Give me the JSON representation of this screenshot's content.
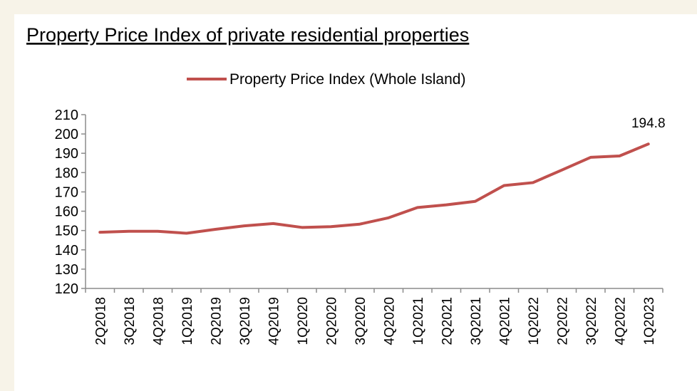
{
  "chart_data": {
    "type": "line",
    "title": "Property Price Index of private residential properties",
    "categories": [
      "2Q2018",
      "3Q2018",
      "4Q2018",
      "1Q2019",
      "2Q2019",
      "3Q2019",
      "4Q2019",
      "1Q2020",
      "2Q2020",
      "3Q2020",
      "4Q2020",
      "1Q2021",
      "2Q2021",
      "3Q2021",
      "4Q2021",
      "1Q2022",
      "2Q2022",
      "3Q2022",
      "4Q2022",
      "1Q2023"
    ],
    "series": [
      {
        "name": "Property Price Index (Whole Island)",
        "color": "#c0504d",
        "values": [
          149.1,
          149.6,
          149.6,
          148.6,
          150.6,
          152.4,
          153.6,
          151.6,
          152.0,
          153.3,
          156.6,
          161.9,
          163.3,
          165.1,
          173.3,
          174.8,
          181.3,
          187.9,
          188.6,
          194.8
        ]
      }
    ],
    "ylim": [
      120,
      210
    ],
    "yticks": [
      120,
      130,
      140,
      150,
      160,
      170,
      180,
      190,
      200,
      210
    ],
    "grid": false,
    "legend": "top"
  }
}
